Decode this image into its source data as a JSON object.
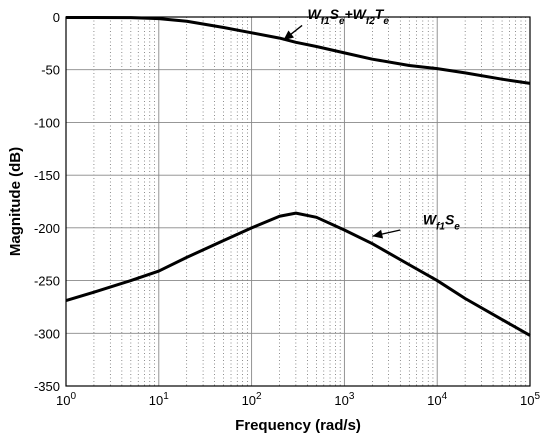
{
  "chart_data": {
    "type": "line",
    "title": "",
    "xlabel": "Frequency (rad/s)",
    "ylabel": "Magnitude (dB)",
    "x_scale": "log",
    "xlim": [
      1,
      100000
    ],
    "ylim": [
      -350,
      0
    ],
    "grid": true,
    "x_ticks": [
      {
        "value": 1,
        "base": "10",
        "exp": "0"
      },
      {
        "value": 10,
        "base": "10",
        "exp": "1"
      },
      {
        "value": 100,
        "base": "10",
        "exp": "2"
      },
      {
        "value": 1000,
        "base": "10",
        "exp": "3"
      },
      {
        "value": 10000,
        "base": "10",
        "exp": "4"
      },
      {
        "value": 100000,
        "base": "10",
        "exp": "5"
      }
    ],
    "y_ticks": [
      0,
      -50,
      -100,
      -150,
      -200,
      -250,
      -300,
      -350
    ],
    "series": [
      {
        "annotation": {
          "parts": [
            {
              "t": "W",
              "sub": false
            },
            {
              "t": "f1",
              "sub": true
            },
            {
              "t": "S",
              "sub": false
            },
            {
              "t": "e",
              "sub": true
            },
            {
              "t": "+W",
              "sub": false
            },
            {
              "t": "f2",
              "sub": true
            },
            {
              "t": "T",
              "sub": false
            },
            {
              "t": "e",
              "sub": true
            }
          ],
          "arrow_from": [
            350,
            -8
          ],
          "arrow_to": [
            220,
            -22
          ],
          "text_at": [
            400,
            -2
          ]
        },
        "points": [
          [
            1,
            -0.5
          ],
          [
            2,
            -0.5
          ],
          [
            5,
            -0.6
          ],
          [
            10,
            -1.5
          ],
          [
            20,
            -4
          ],
          [
            50,
            -10
          ],
          [
            100,
            -15
          ],
          [
            200,
            -20
          ],
          [
            300,
            -24
          ],
          [
            500,
            -28
          ],
          [
            1000,
            -34
          ],
          [
            2000,
            -40
          ],
          [
            5000,
            -46
          ],
          [
            10000,
            -49
          ],
          [
            20000,
            -53
          ],
          [
            50000,
            -59
          ],
          [
            100000,
            -63
          ]
        ]
      },
      {
        "annotation": {
          "parts": [
            {
              "t": "W",
              "sub": false
            },
            {
              "t": "f1",
              "sub": true
            },
            {
              "t": "S",
              "sub": false
            },
            {
              "t": "e",
              "sub": true
            }
          ],
          "arrow_from": [
            4000,
            -202
          ],
          "arrow_to": [
            2000,
            -208
          ],
          "text_at": [
            7000,
            -197
          ]
        },
        "points": [
          [
            1,
            -269
          ],
          [
            2,
            -261
          ],
          [
            5,
            -250
          ],
          [
            10,
            -241
          ],
          [
            20,
            -228
          ],
          [
            50,
            -212
          ],
          [
            100,
            -200
          ],
          [
            200,
            -189
          ],
          [
            300,
            -186
          ],
          [
            500,
            -190
          ],
          [
            1000,
            -202
          ],
          [
            2000,
            -215
          ],
          [
            5000,
            -235
          ],
          [
            10000,
            -250
          ],
          [
            20000,
            -267
          ],
          [
            50000,
            -287
          ],
          [
            100000,
            -302
          ]
        ]
      }
    ]
  }
}
